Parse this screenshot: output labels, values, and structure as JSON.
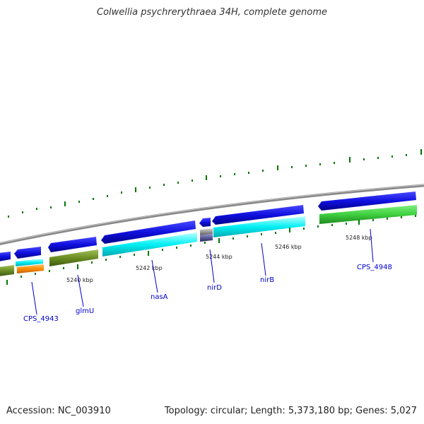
{
  "title": "Colwellia psychrerythraea 34H, complete genome",
  "footer": {
    "accession": "Accession: NC_003910",
    "summary": "Topology: circular; Length: 5,373,180 bp; Genes: 5,027"
  },
  "kbp_labels": [
    "5240 kbp",
    "5242 kbp",
    "5244 kbp",
    "5246 kbp",
    "5248 kbp"
  ],
  "gene_labels": [
    "CPS_4943",
    "glmU",
    "nasA",
    "nirD",
    "nirB",
    "CPS_4948"
  ],
  "colors": {
    "backbone": "#8a8a8a",
    "gene_arrow": "#1010e0",
    "cyan_feature": "#00e8ee",
    "green_feature": "#3fcf3f",
    "olive_feature": "#6b8e23",
    "orange_feature": "#ff8c00",
    "tick_green": "#007700",
    "label_blue": "#0000cc"
  }
}
